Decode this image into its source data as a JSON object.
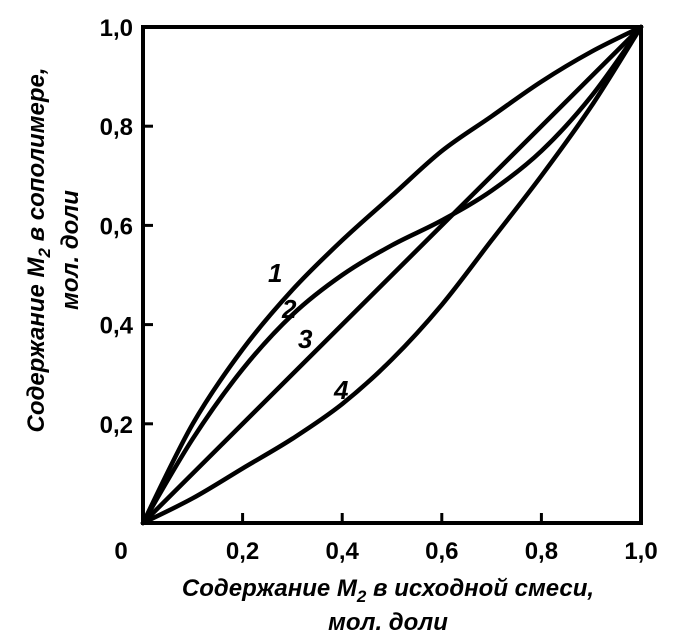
{
  "chart_data": {
    "type": "line",
    "x_ticks": [
      "0",
      "0,2",
      "0,4",
      "0,6",
      "0,8",
      "1,0"
    ],
    "y_ticks": [
      "0,2",
      "0,4",
      "0,6",
      "0,8",
      "1,0"
    ],
    "xlabel_line1_pre": "Содержание M",
    "xlabel_line1_sub": "2",
    "xlabel_line1_post": " в исходной смеси,",
    "xlabel_line2": "мол. доли",
    "ylabel_line1_pre": "Содержание M",
    "ylabel_line1_sub": "2",
    "ylabel_line1_post": " в сополимере,",
    "ylabel_line2": "мол. доли",
    "xlim": [
      0,
      1
    ],
    "ylim": [
      0,
      1
    ],
    "grid": false,
    "series": [
      {
        "label": "1",
        "x": [
          0,
          0.1,
          0.2,
          0.3,
          0.4,
          0.5,
          0.6,
          0.7,
          0.8,
          0.9,
          1.0
        ],
        "y": [
          0,
          0.2,
          0.35,
          0.47,
          0.57,
          0.66,
          0.75,
          0.82,
          0.89,
          0.95,
          1.0
        ]
      },
      {
        "label": "2",
        "x": [
          0,
          0.1,
          0.2,
          0.3,
          0.4,
          0.5,
          0.6,
          0.7,
          0.8,
          0.9,
          1.0
        ],
        "y": [
          0,
          0.17,
          0.31,
          0.42,
          0.5,
          0.56,
          0.61,
          0.67,
          0.75,
          0.86,
          1.0
        ]
      },
      {
        "label": "3",
        "x": [
          0,
          1.0
        ],
        "y": [
          0,
          1.0
        ]
      },
      {
        "label": "4",
        "x": [
          0,
          0.1,
          0.2,
          0.3,
          0.4,
          0.5,
          0.6,
          0.7,
          0.8,
          0.9,
          1.0
        ],
        "y": [
          0,
          0.05,
          0.11,
          0.17,
          0.24,
          0.33,
          0.44,
          0.57,
          0.7,
          0.84,
          1.0
        ]
      }
    ]
  }
}
